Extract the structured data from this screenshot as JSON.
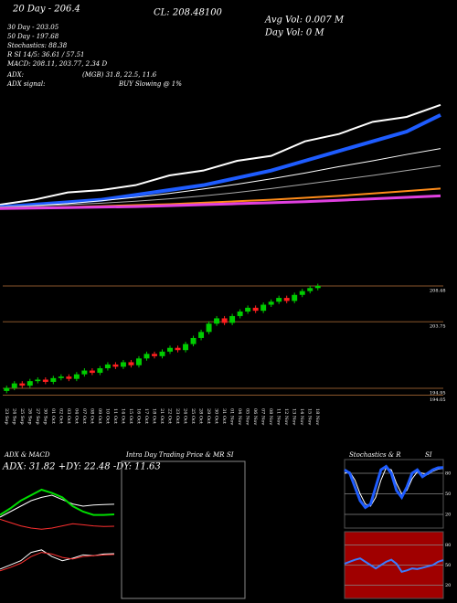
{
  "chart_data": [
    {
      "type": "line",
      "ylim": [
        185,
        230
      ],
      "texts": [
        "20 Day - 206.4",
        "30 Day - 203.05",
        "50 Day - 197.68",
        "Stochastics: 88.38",
        "R  SI 14/5: 36.61 / 57.51",
        "MACD: 208.11, 203.77, 2.34  D",
        "ADX:",
        "(MGB) 31.8, 22.5, 11.6",
        "ADX  signal:",
        "BUY Slowing @ 1%",
        "CL: 208.48100",
        "Avg Vol: 0.007 M",
        "Day Vol: 0  M"
      ],
      "series": [
        {
          "color": "#ffffff",
          "width": 2,
          "values": [
            188,
            189,
            190.5,
            191,
            192,
            194,
            195,
            197,
            198,
            201,
            202.5,
            205,
            206,
            208.48
          ]
        },
        {
          "color": "#1e5cff",
          "width": 4,
          "values": [
            187.5,
            188,
            188.5,
            189,
            190,
            191,
            192,
            193.5,
            195,
            197,
            199,
            201,
            203,
            206.4
          ]
        },
        {
          "color": "#ffffff",
          "width": 1,
          "values": [
            187.5,
            187.8,
            188.2,
            188.8,
            189.5,
            190.3,
            191.2,
            192.2,
            193.3,
            194.5,
            195.8,
            197,
            198.3,
            199.5
          ]
        },
        {
          "color": "#aaaaaa",
          "width": 1,
          "values": [
            187.5,
            187.7,
            188,
            188.3,
            188.7,
            189.2,
            189.8,
            190.5,
            191.3,
            192.2,
            193.1,
            194,
            195,
            196
          ]
        },
        {
          "color": "#ff8c1a",
          "width": 2,
          "values": [
            187.3,
            187.4,
            187.5,
            187.7,
            187.9,
            188.1,
            188.4,
            188.7,
            189,
            189.4,
            189.8,
            190.3,
            190.8,
            191.3
          ]
        },
        {
          "color": "#e040e0",
          "width": 3,
          "values": [
            187.2,
            187.3,
            187.4,
            187.5,
            187.6,
            187.8,
            188,
            188.2,
            188.4,
            188.6,
            188.9,
            189.2,
            189.5,
            189.8
          ]
        }
      ]
    },
    {
      "type": "candlestick",
      "ylim": [
        193.14,
        210.05
      ],
      "yticks": [
        208.48,
        203.75,
        194.95,
        194.05
      ],
      "up_color": "#00cc00",
      "down_color": "#ff2020",
      "categories": [
        "23 Sep",
        "24 Sep",
        "25 Sep",
        "26 Sep",
        "27 Sep",
        "30 Sep",
        "01 Oct",
        "02 Oct",
        "03 Oct",
        "04 Oct",
        "07 Oct",
        "08 Oct",
        "09 Oct",
        "10 Oct",
        "11 Oct",
        "14 Oct",
        "15 Oct",
        "16 Oct",
        "17 Oct",
        "18 Oct",
        "21 Oct",
        "22 Oct",
        "23 Oct",
        "24 Oct",
        "25 Oct",
        "28 Oct",
        "29 Oct",
        "30 Oct",
        "31 Oct",
        "01 Nov",
        "04 Nov",
        "05 Nov",
        "06 Nov",
        "07 Nov",
        "08 Nov",
        "11 Nov",
        "12 Nov",
        "13 Nov",
        "14 Nov",
        "15 Nov",
        "18 Nov"
      ],
      "open": [
        194.6,
        195.0,
        195.6,
        195.3,
        195.9,
        196.1,
        195.8,
        196.3,
        196.5,
        196.2,
        196.8,
        197.3,
        197.0,
        197.6,
        198.1,
        197.8,
        198.4,
        198.0,
        198.9,
        199.5,
        199.2,
        199.8,
        200.3,
        200.0,
        200.8,
        201.6,
        202.4,
        203.5,
        204.2,
        203.6,
        204.5,
        205.1,
        205.6,
        205.2,
        206.0,
        206.4,
        206.9,
        206.5,
        207.3,
        207.8,
        208.2
      ],
      "high": [
        195.3,
        195.9,
        195.9,
        196.2,
        196.4,
        196.4,
        196.6,
        196.8,
        196.8,
        197.1,
        197.6,
        197.6,
        197.9,
        198.4,
        198.4,
        198.7,
        198.7,
        199.2,
        199.8,
        199.8,
        200.1,
        200.6,
        200.6,
        201.1,
        201.9,
        202.7,
        203.8,
        204.5,
        204.5,
        204.8,
        205.4,
        205.9,
        205.9,
        206.3,
        206.7,
        207.2,
        207.2,
        207.6,
        208.1,
        208.5,
        208.78
      ],
      "low": [
        194.3,
        194.7,
        195.0,
        195.0,
        195.6,
        195.5,
        195.5,
        196.0,
        195.9,
        195.9,
        196.5,
        196.7,
        196.7,
        197.3,
        197.5,
        197.5,
        197.7,
        197.7,
        198.6,
        198.9,
        198.9,
        199.5,
        199.7,
        199.7,
        200.5,
        201.3,
        202.1,
        203.2,
        203.3,
        203.3,
        204.2,
        204.8,
        204.9,
        204.9,
        205.7,
        206.1,
        206.2,
        206.2,
        207.0,
        207.5,
        207.9
      ],
      "close": [
        195.0,
        195.6,
        195.3,
        195.9,
        196.1,
        195.8,
        196.3,
        196.5,
        196.2,
        196.8,
        197.3,
        197.0,
        197.6,
        198.1,
        197.8,
        198.4,
        198.0,
        198.9,
        199.5,
        199.2,
        199.8,
        200.3,
        200.0,
        200.8,
        201.6,
        202.4,
        203.5,
        204.2,
        203.6,
        204.5,
        205.1,
        205.6,
        205.2,
        206.0,
        206.4,
        206.9,
        206.5,
        207.3,
        207.8,
        208.2,
        208.48
      ]
    },
    {
      "type": "line",
      "title": "ADX  & MACD",
      "subtitle": "ADX: 31.82  +DY: 22.48  -DY: 11.63",
      "ylim": [
        0,
        60
      ],
      "series": [
        {
          "color": "#ffffff",
          "width": 1,
          "values": [
            20,
            25,
            30,
            35,
            38,
            40,
            36,
            32,
            30,
            31,
            31.5,
            31.82
          ]
        },
        {
          "color": "#00dd00",
          "width": 2,
          "values": [
            22,
            28,
            35,
            40,
            45,
            42,
            38,
            30,
            25,
            22,
            22,
            22.48
          ]
        },
        {
          "color": "#ff3030",
          "width": 1,
          "values": [
            18,
            15,
            12,
            10,
            9,
            10,
            12,
            14,
            13,
            12,
            11.5,
            11.63
          ]
        }
      ]
    },
    {
      "type": "line",
      "ylim": [
        -3,
        3
      ],
      "series": [
        {
          "color": "#ffffff",
          "width": 1,
          "values": [
            0.5,
            1,
            1.5,
            2.5,
            2.8,
            2,
            1.5,
            1.8,
            2.2,
            2.1,
            2.3,
            2.34
          ]
        },
        {
          "color": "#ff3030",
          "width": 1,
          "values": [
            0.3,
            0.7,
            1.2,
            2,
            2.5,
            2.3,
            1.9,
            1.7,
            2,
            2.1,
            2.2,
            2.25
          ]
        }
      ]
    },
    {
      "type": "box",
      "title": "Intra Day Trading Price  & MR",
      "title2": "SI"
    },
    {
      "type": "line",
      "title": "Stochastics & R",
      "title2": "SI",
      "ylim": [
        0,
        100
      ],
      "yticks": [
        80,
        50,
        20
      ],
      "background": "#000000",
      "series": [
        {
          "color": "#ffffff",
          "width": 1,
          "values": [
            80,
            82,
            70,
            50,
            35,
            32,
            45,
            70,
            88,
            85,
            65,
            50,
            55,
            72,
            82,
            80,
            78,
            83,
            86,
            87
          ]
        },
        {
          "color": "#1e5cff",
          "width": 3,
          "values": [
            85,
            80,
            60,
            40,
            30,
            35,
            60,
            85,
            90,
            80,
            55,
            45,
            60,
            80,
            85,
            75,
            80,
            85,
            88,
            88.38
          ]
        }
      ]
    },
    {
      "type": "line",
      "ylim": [
        0,
        100
      ],
      "yticks": [
        80,
        50,
        20
      ],
      "background": "#a00000",
      "series": [
        {
          "color": "#3a7bff",
          "width": 2,
          "values": [
            52,
            55,
            58,
            60,
            55,
            50,
            45,
            50,
            55,
            58,
            52,
            40,
            42,
            45,
            44,
            46,
            48,
            50,
            55,
            57.51
          ]
        }
      ]
    }
  ]
}
